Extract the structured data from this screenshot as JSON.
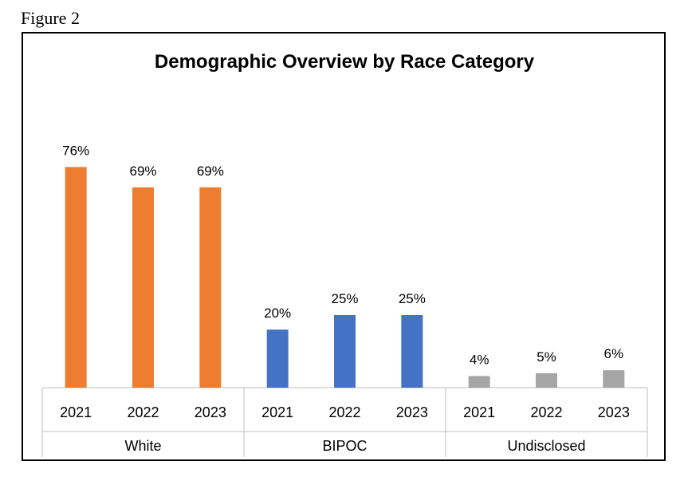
{
  "figure_label": "Figure 2",
  "chart_data": {
    "type": "bar",
    "title": "Demographic Overview by Race Category",
    "xlabel": "",
    "ylabel": "",
    "ylim": [
      0,
      80
    ],
    "grid": false,
    "legend": "none",
    "groups": [
      {
        "name": "White",
        "color": "#ED7D31",
        "categories": [
          "2021",
          "2022",
          "2023"
        ],
        "values": [
          76,
          69,
          69
        ],
        "labels": [
          "76%",
          "69%",
          "69%"
        ]
      },
      {
        "name": "BIPOC",
        "color": "#4472C4",
        "categories": [
          "2021",
          "2022",
          "2023"
        ],
        "values": [
          20,
          25,
          25
        ],
        "labels": [
          "20%",
          "25%",
          "25%"
        ]
      },
      {
        "name": "Undisclosed",
        "color": "#A5A5A5",
        "categories": [
          "2021",
          "2022",
          "2023"
        ],
        "values": [
          4,
          5,
          6
        ],
        "labels": [
          "4%",
          "5%",
          "6%"
        ]
      }
    ]
  }
}
